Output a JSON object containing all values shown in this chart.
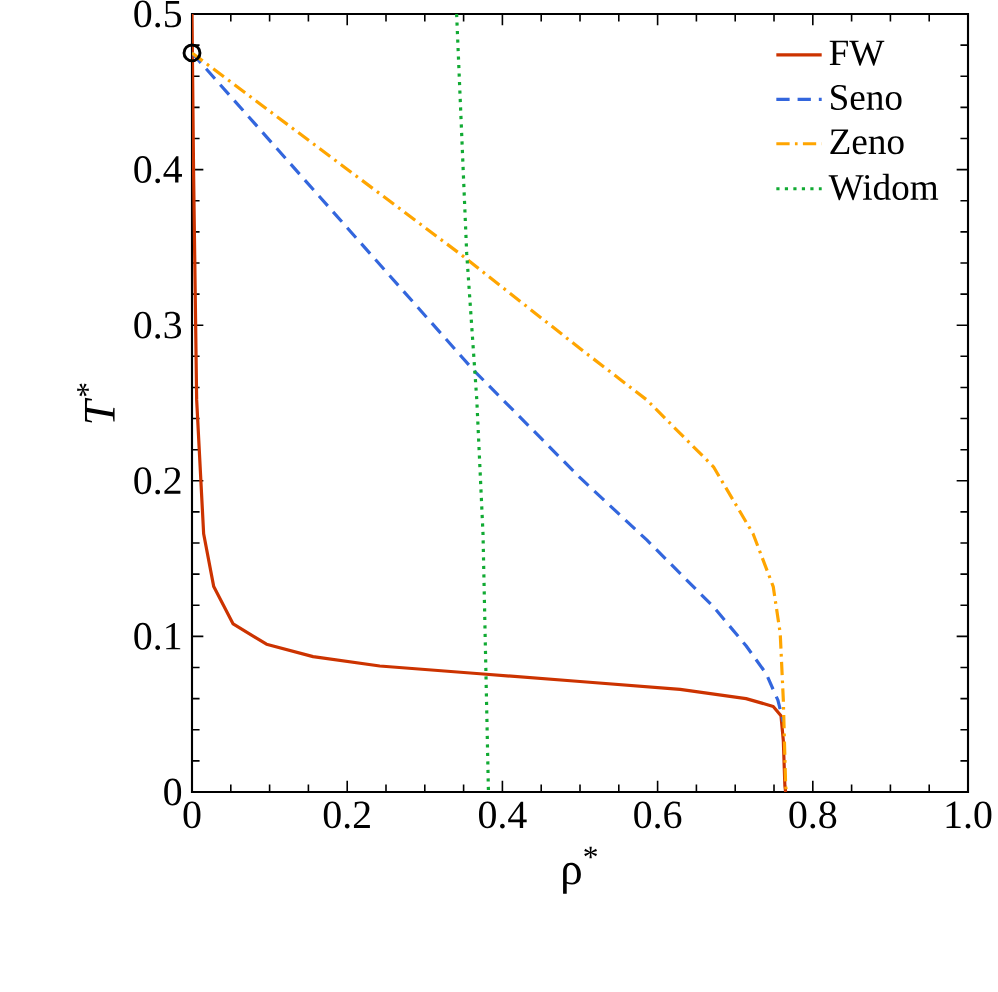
{
  "chart_data": {
    "type": "line",
    "xlabel": "ρ$^{*}$",
    "ylabel": "*T*$^{*}$",
    "xlim": [
      0,
      1
    ],
    "ylim": [
      0,
      0.5
    ],
    "xticks": [
      0,
      0.2,
      0.4,
      0.6,
      0.8,
      {
        "value": 1,
        "label": "1.0"
      }
    ],
    "yticks": [
      0,
      0.1,
      0.2,
      0.3,
      0.4,
      0.5
    ],
    "grid": false,
    "legend": "top right",
    "series": [
      {
        "name": "FW",
        "color": "#cc3300",
        "line_style": "solid",
        "x": [
          0,
          0.002,
          0.006,
          0.015,
          0.028,
          0.053,
          0.096,
          0.156,
          0.242,
          0.371,
          0.5,
          0.629,
          0.714,
          0.749,
          0.759,
          0.762,
          0.764,
          0.765
        ],
        "values": [
          0.5,
          0.4,
          0.252,
          0.166,
          0.132,
          0.108,
          0.095,
          0.087,
          0.081,
          0.076,
          0.071,
          0.066,
          0.06,
          0.055,
          0.049,
          0.033,
          0.004,
          0
        ]
      },
      {
        "name": "Seno",
        "color": "#3366dd",
        "line_style": "dashed",
        "x": [
          0,
          0.363,
          0.5,
          0.586,
          0.672,
          0.714,
          0.74,
          0.755,
          0.762
        ],
        "values": [
          0.475,
          0.271,
          0.202,
          0.162,
          0.119,
          0.094,
          0.076,
          0.059,
          0.045
        ]
      },
      {
        "name": "Zeno",
        "color": "#ffa500",
        "line_style": "dashdotted",
        "x": [
          0,
          0.345,
          0.5,
          0.586,
          0.672,
          0.723,
          0.749,
          0.758,
          0.762,
          0.765,
          0.766
        ],
        "values": [
          0.475,
          0.346,
          0.285,
          0.252,
          0.209,
          0.166,
          0.132,
          0.102,
          0.059,
          0.004,
          0
        ]
      },
      {
        "name": "Widom",
        "color": "#11aa33",
        "line_style": "dotted",
        "x": [
          0.341,
          0.354,
          0.367,
          0.375,
          0.382
        ],
        "values": [
          0.5,
          0.346,
          0.252,
          0.166,
          0
        ]
      },
      {
        "type": "scatter",
        "color": "#000000",
        "marker": "circle",
        "x": [
          0
        ],
        "values": [
          0.475
        ]
      }
    ]
  }
}
